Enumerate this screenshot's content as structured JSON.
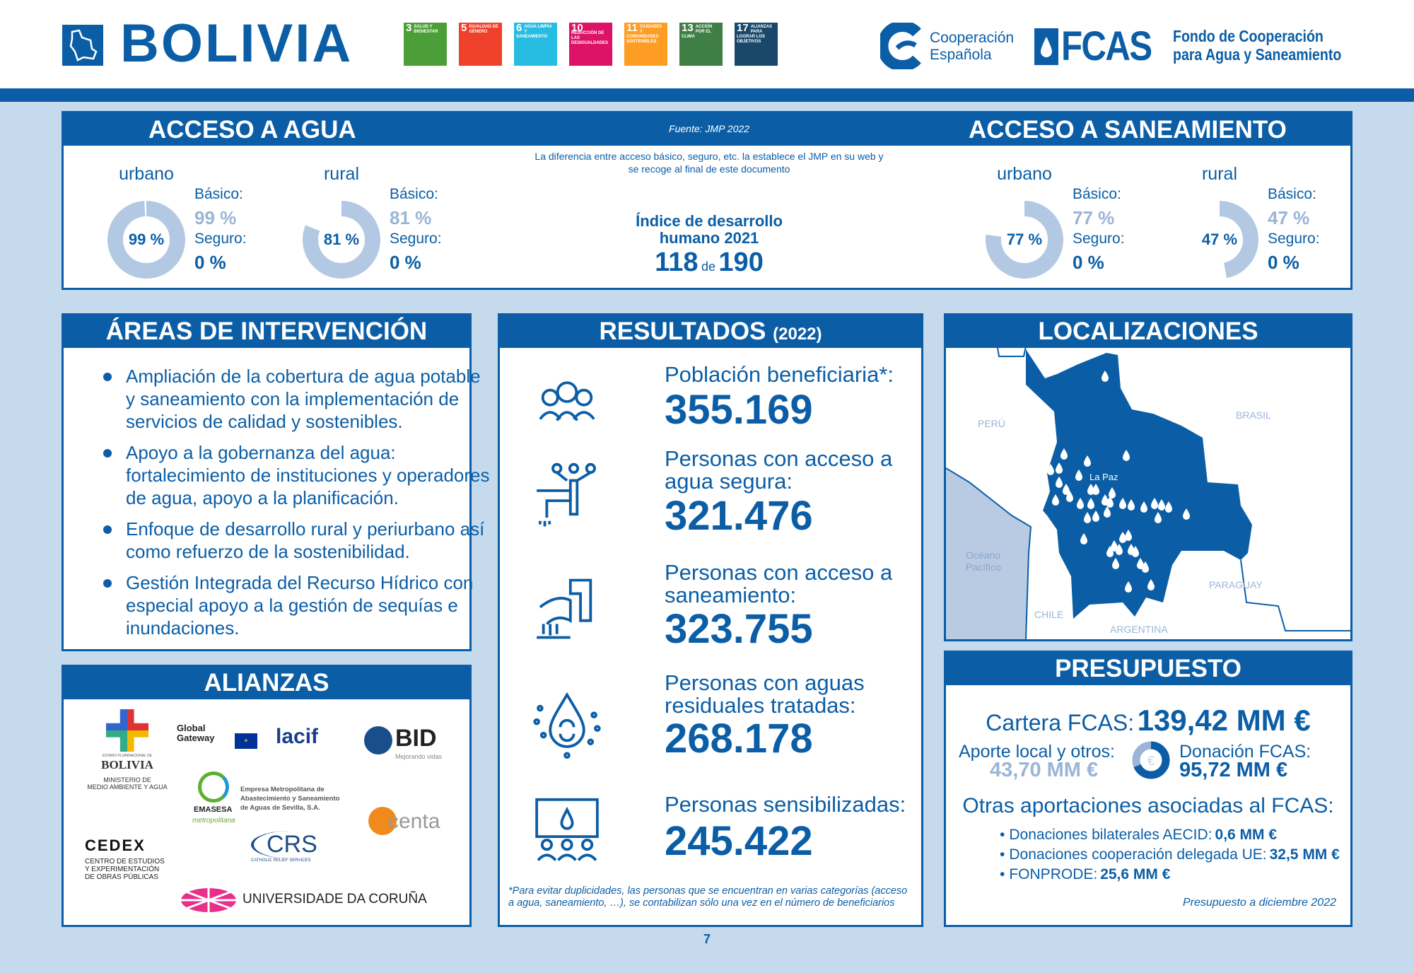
{
  "header": {
    "country": "BOLIVIA",
    "country_icon": "bolivia-map-icon",
    "sdgs": [
      {
        "num": "3",
        "label": "SALUD Y BIENESTAR",
        "color": "#4c9f38"
      },
      {
        "num": "5",
        "label": "IGUALDAD DE GÉNERO",
        "color": "#ef402b"
      },
      {
        "num": "6",
        "label": "AGUA LIMPIA Y SANEAMIENTO",
        "color": "#27bde2"
      },
      {
        "num": "10",
        "label": "REDUCCIÓN DE LAS DESIGUALDADES",
        "color": "#dd1367"
      },
      {
        "num": "11",
        "label": "CIUDADES Y COMUNIDADES SOSTENIBLES",
        "color": "#fd9d24"
      },
      {
        "num": "13",
        "label": "ACCIÓN POR EL CLIMA",
        "color": "#3f7e44"
      },
      {
        "num": "17",
        "label": "ALIANZAS PARA LOGRAR LOS OBJETIVOS",
        "color": "#19486a"
      }
    ],
    "coop_line1": "Cooperación",
    "coop_line2": "Española",
    "fcas": "FCAS",
    "fcas_line1": "Fondo de Cooperación",
    "fcas_line2": "para Agua y Saneamiento"
  },
  "acceso": {
    "agua_title": "ACCESO A AGUA",
    "saneamiento_title": "ACCESO A SANEAMIENTO",
    "source": "Fuente: JMP 2022",
    "note_line1": "La diferencia entre acceso básico, seguro, etc. la establece el JMP en su web y",
    "note_line2": "se recoge al final de este documento",
    "idh_line1": "Índice de desarrollo",
    "idh_line2": "humano 2021",
    "idh_rank": "118",
    "idh_de": "de",
    "idh_total": "190",
    "basico_label": "Básico:",
    "seguro_label": "Seguro:",
    "agua": [
      {
        "zone": "urbano",
        "basico_pct": 99,
        "basico": "99 %",
        "seguro": "0 %",
        "center": "99 %"
      },
      {
        "zone": "rural",
        "basico_pct": 81,
        "basico": "81 %",
        "seguro": "0 %",
        "center": "81 %"
      }
    ],
    "saneamiento": [
      {
        "zone": "urbano",
        "basico_pct": 77,
        "basico": "77 %",
        "seguro": "0 %",
        "center": "77 %"
      },
      {
        "zone": "rural",
        "basico_pct": 47,
        "basico": "47 %",
        "seguro": "0 %",
        "center": "47 %"
      }
    ],
    "colors": {
      "basico": "#b3c9e3",
      "seguro": "#0b5ea6"
    }
  },
  "areas": {
    "title": "ÁREAS DE INTERVENCIÓN",
    "items": [
      "Ampliación de la cobertura de agua potable y saneamiento con la implementación de servicios de calidad y sostenibles.",
      "Apoyo a la gobernanza del agua: fortalecimiento de instituciones y operadores de agua, apoyo a la planificación.",
      "Enfoque de desarrollo rural y periurbano así como refuerzo de la sostenibilidad.",
      "Gestión Integrada del Recurso Hídrico con especial apoyo a la gestión de sequías e inundaciones."
    ]
  },
  "alianzas": {
    "title": "ALIANZAS",
    "bolivia_small": "ESTADO PLURINACIONAL DE",
    "bolivia": "BOLIVIA",
    "ministerio_l1": "MINISTERIO DE",
    "ministerio_l2": "MEDIO AMBIENTE Y AGUA",
    "global_l1": "Global",
    "global_l2": "Gateway",
    "lacif": "lacif",
    "bid": "BID",
    "bid_tag": "Mejorando vidas",
    "emasesa": "EMASESA",
    "emasesa_tag": "metropolitana",
    "emasesa_l1": "Empresa Metropolitana de",
    "emasesa_l2": "Abastecimiento y Saneamiento",
    "emasesa_l3": "de Aguas de Sevilla, S.A.",
    "centa": "centa",
    "cedex": "CEDEX",
    "cedex_l1": "CENTRO DE ESTUDIOS",
    "cedex_l2": "Y EXPERIMENTACIÓN",
    "cedex_l3": "DE OBRAS PÚBLICAS",
    "crs": "CRS",
    "crs_tag": "CATHOLIC RELIEF SERVICES",
    "udc": "UNIVERSIDADE DA CORUÑA"
  },
  "resultados": {
    "title": "RESULTADOS",
    "year": "(2022)",
    "items": [
      {
        "icon": "people-group-icon",
        "label": "Población beneficiaria*:",
        "value": "355.169"
      },
      {
        "icon": "water-tap-icon",
        "label": "Personas con acceso a agua segura:",
        "value": "321.476"
      },
      {
        "icon": "sewage-pipe-icon",
        "label": "Personas con acceso a saneamiento:",
        "value": "323.755"
      },
      {
        "icon": "water-recycle-drop-icon",
        "label": "Personas con aguas residuales tratadas:",
        "value": "268.178"
      },
      {
        "icon": "presentation-audience-icon",
        "label": "Personas sensibilizadas:",
        "value": "245.422"
      }
    ],
    "footnote": "*Para evitar duplicidades, las personas que se encuentran en varias categorías (acceso a agua, saneamiento, …), se contabilizan sólo una vez en el número de beneficiarios"
  },
  "localizaciones": {
    "title": "LOCALIZACIONES",
    "labels": {
      "peru": "PERÚ",
      "brasil": "BRASIL",
      "lapaz": "La Paz",
      "oceano_l1": "Océano",
      "oceano_l2": "Pacífico",
      "paraguay": "PARAGUAY",
      "chile": "CHILE",
      "argentina": "ARGENTINA"
    }
  },
  "presupuesto": {
    "title": "PRESUPUESTO",
    "cartera_label": "Cartera FCAS:",
    "cartera_value": "139,42 MM €",
    "aporte_label": "Aporte local y otros:",
    "aporte_value": "43,70 MM €",
    "aporte_amount": 43.7,
    "donacion_label": "Donación FCAS:",
    "donacion_value": "95,72 MM €",
    "donacion_amount": 95.72,
    "euro": "€",
    "otras_title": "Otras aportaciones asociadas al FCAS:",
    "otras": [
      {
        "label": "Donaciones bilaterales AECID:",
        "value": "0,6 MM €"
      },
      {
        "label": "Donaciones cooperación delegada UE:",
        "value": "32,5 MM €"
      },
      {
        "label": "FONPRODE:",
        "value": "25,6 MM €"
      }
    ],
    "footer": "Presupuesto a diciembre 2022"
  },
  "page_number": "7"
}
